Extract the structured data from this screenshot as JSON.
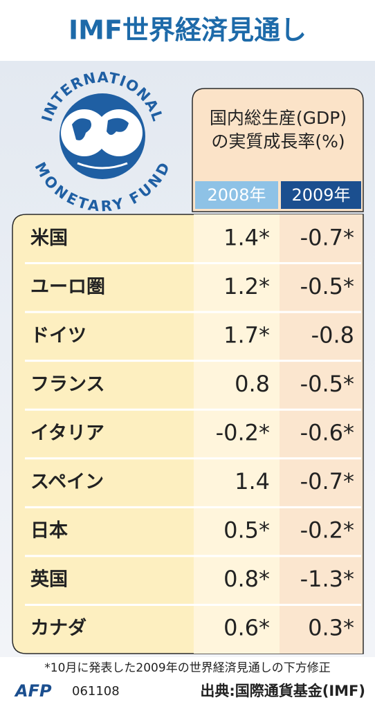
{
  "header": {
    "title": "IMF世界経済見通し"
  },
  "logo": {
    "top": "INTERNATIONAL",
    "bottom": "MONETARY FUND"
  },
  "table": {
    "caption_lines": [
      "国内総生産(GDP)",
      "の実質成長率(%)"
    ],
    "columns": [
      "2008年",
      "2009年"
    ],
    "rows": [
      [
        "米国",
        "1.4*",
        "-0.7*"
      ],
      [
        "ユーロ圏",
        "1.2*",
        "-0.5*"
      ],
      [
        "ドイツ",
        "1.7*",
        "-0.8"
      ],
      [
        "フランス",
        "0.8",
        "-0.5*"
      ],
      [
        "イタリア",
        "-0.2*",
        "-0.6*"
      ],
      [
        "スペイン",
        "1.4",
        "-0.7*"
      ],
      [
        "日本",
        "0.5*",
        "-0.2*"
      ],
      [
        "英国",
        "0.8*",
        "-1.3*"
      ],
      [
        "カナダ",
        "0.6*",
        "0.3*"
      ]
    ]
  },
  "footer": {
    "note": "*10月に発表した2009年の世界経済見通しの下方修正",
    "agency": "AFP",
    "code": "061108",
    "source": "出典:国際通貨基金(IMF)"
  }
}
